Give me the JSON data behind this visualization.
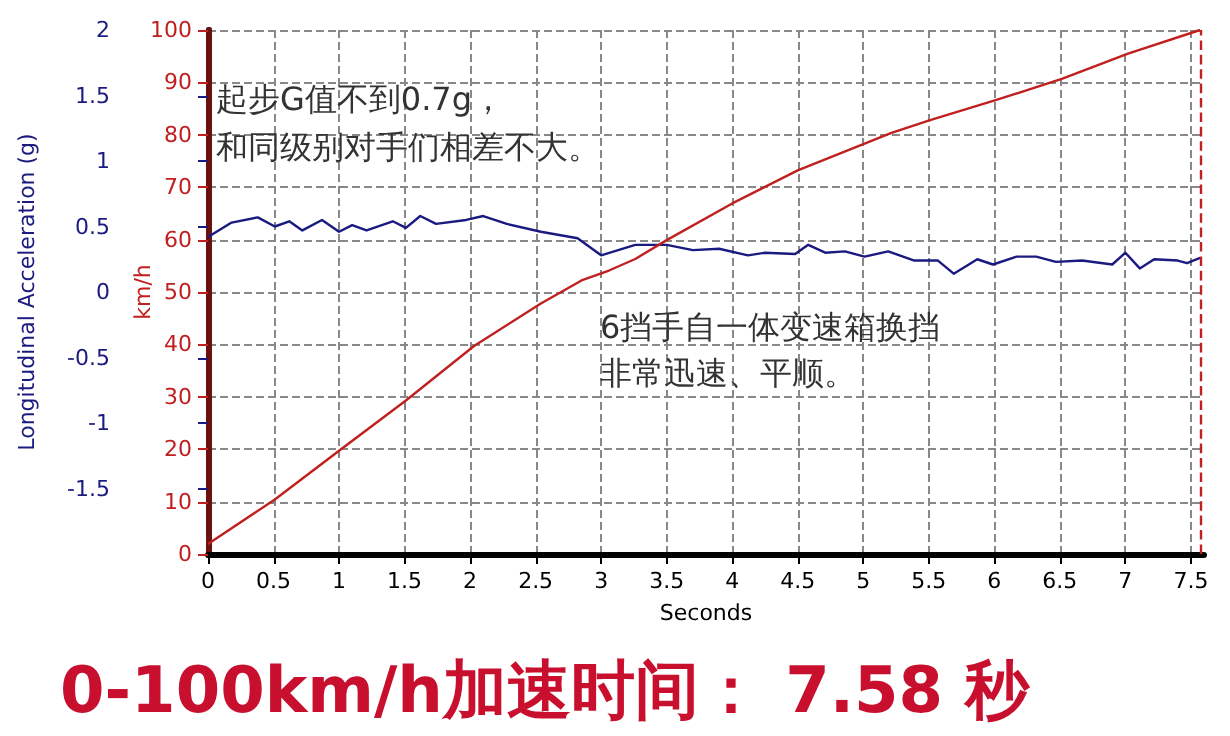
{
  "chart_data": {
    "type": "line",
    "xlabel": "Seconds",
    "ylabel": "Longitudinal Acceleration (g)",
    "y2label": "km/h",
    "annotations": [
      "起步G值不到0.7g，",
      "和同级别对手们相差不大。",
      "6挡手自一体变速箱换挡",
      "非常迅速、平顺。",
      "0-100km/h加速时间： 7.58 秒"
    ],
    "series": [
      {
        "color": "#1a1a80",
        "axis": "y",
        "x": [
          0,
          0.18,
          0.38,
          0.51,
          0.62,
          0.72,
          0.87,
          1.0,
          1.1,
          1.21,
          1.41,
          1.51,
          1.62,
          1.74,
          1.97,
          2.1,
          2.28,
          2.54,
          2.82,
          3.0,
          3.26,
          3.5,
          3.7,
          3.9,
          4.12,
          4.25,
          4.48,
          4.58,
          4.71,
          4.86,
          5.01,
          5.19,
          5.39,
          5.57,
          5.69,
          5.79,
          5.87,
          5.99,
          6.17,
          6.32,
          6.47,
          6.67,
          6.9,
          7.0,
          7.11,
          7.22,
          7.4,
          7.47,
          7.57
        ],
        "values": [
          0.42,
          0.53,
          0.57,
          0.5,
          0.54,
          0.47,
          0.55,
          0.46,
          0.51,
          0.47,
          0.54,
          0.49,
          0.58,
          0.52,
          0.55,
          0.58,
          0.52,
          0.46,
          0.41,
          0.28,
          0.36,
          0.36,
          0.32,
          0.33,
          0.28,
          0.3,
          0.29,
          0.36,
          0.3,
          0.31,
          0.27,
          0.31,
          0.24,
          0.24,
          0.14,
          0.2,
          0.25,
          0.21,
          0.27,
          0.27,
          0.23,
          0.24,
          0.21,
          0.3,
          0.18,
          0.25,
          0.24,
          0.22,
          0.26
        ]
      },
      {
        "color": "#c02020",
        "axis": "y2",
        "x": [
          0,
          0.51,
          1.0,
          1.51,
          2.03,
          2.54,
          2.85,
          3.06,
          3.26,
          3.5,
          4.0,
          4.5,
          5.01,
          5.21,
          5.51,
          6.01,
          6.52,
          7.02,
          7.57
        ],
        "values": [
          1.9,
          10.4,
          19.7,
          29.3,
          39.7,
          47.8,
          52.2,
          54.1,
          56.3,
          59.9,
          66.9,
          73.2,
          78.3,
          80.3,
          82.8,
          86.6,
          90.7,
          95.5,
          100
        ]
      }
    ],
    "xlim": [
      0,
      7.6
    ],
    "xticks": [
      0,
      0.5,
      1,
      1.5,
      2,
      2.5,
      3,
      3.5,
      4,
      4.5,
      5,
      5.5,
      6,
      6.5,
      7,
      7.5
    ],
    "ylim": [
      -2,
      2
    ],
    "yticks": [
      -1.5,
      -1,
      -0.5,
      0,
      0.5,
      1,
      1.5,
      2
    ],
    "y2lim": [
      0,
      100
    ],
    "y2ticks": [
      0,
      10,
      20,
      30,
      40,
      50,
      60,
      70,
      80,
      90,
      100
    ],
    "ref_lines": [
      {
        "axis": "x",
        "value": 7.58,
        "color": "#c02020",
        "line_style": "dashed"
      }
    ],
    "grid": true,
    "marker": "none",
    "line_style": "solid"
  }
}
